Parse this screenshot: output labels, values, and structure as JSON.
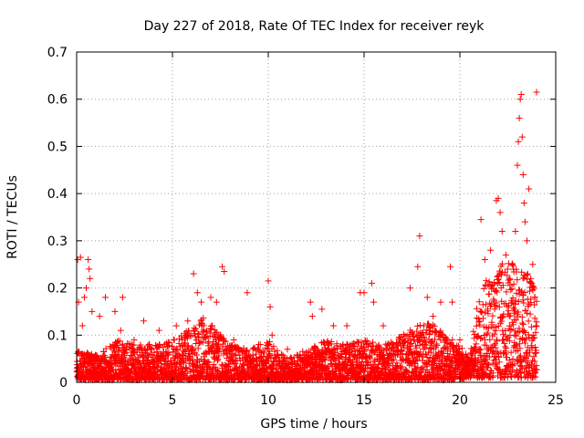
{
  "chart_data": {
    "type": "scatter",
    "title": "Day 227 of 2018, Rate Of TEC Index for receiver reyk",
    "xlabel": "GPS time / hours",
    "ylabel": "ROTI / TECUs",
    "xlim": [
      0,
      25
    ],
    "ylim": [
      0,
      0.7
    ],
    "x_ticks": [
      0,
      5,
      10,
      15,
      20,
      25
    ],
    "x_tick_labels": [
      "0",
      "5",
      "10",
      "15",
      "20",
      "25"
    ],
    "y_ticks": [
      0,
      0.1,
      0.2,
      0.3,
      0.4,
      0.5,
      0.6,
      0.7
    ],
    "y_tick_labels": [
      "0",
      "0.1",
      "0.2",
      "0.3",
      "0.4",
      "0.5",
      "0.6",
      "0.7"
    ],
    "grid": true,
    "marker": "+",
    "series": [
      {
        "name": "ROTI",
        "color": "#ff0000",
        "points": [
          [
            0.05,
            0.26
          ],
          [
            0.1,
            0.17
          ],
          [
            0.2,
            0.265
          ],
          [
            0.3,
            0.12
          ],
          [
            0.4,
            0.18
          ],
          [
            0.5,
            0.2
          ],
          [
            0.6,
            0.26
          ],
          [
            0.65,
            0.24
          ],
          [
            0.7,
            0.22
          ],
          [
            0.8,
            0.15
          ],
          [
            1.2,
            0.14
          ],
          [
            1.5,
            0.18
          ],
          [
            2.0,
            0.15
          ],
          [
            2.3,
            0.11
          ],
          [
            2.4,
            0.18
          ],
          [
            3.0,
            0.09
          ],
          [
            3.5,
            0.13
          ],
          [
            3.8,
            0.08
          ],
          [
            4.3,
            0.11
          ],
          [
            5.2,
            0.12
          ],
          [
            5.8,
            0.13
          ],
          [
            6.1,
            0.23
          ],
          [
            6.3,
            0.19
          ],
          [
            6.5,
            0.17
          ],
          [
            7.0,
            0.18
          ],
          [
            7.3,
            0.17
          ],
          [
            7.6,
            0.245
          ],
          [
            7.7,
            0.235
          ],
          [
            8.2,
            0.09
          ],
          [
            8.9,
            0.19
          ],
          [
            9.2,
            0.07
          ],
          [
            9.5,
            0.08
          ],
          [
            10.0,
            0.215
          ],
          [
            10.1,
            0.16
          ],
          [
            10.2,
            0.1
          ],
          [
            11.0,
            0.07
          ],
          [
            12.2,
            0.17
          ],
          [
            12.3,
            0.14
          ],
          [
            12.8,
            0.155
          ],
          [
            13.4,
            0.12
          ],
          [
            13.9,
            0.08
          ],
          [
            14.1,
            0.12
          ],
          [
            14.8,
            0.19
          ],
          [
            15.0,
            0.19
          ],
          [
            15.4,
            0.21
          ],
          [
            15.5,
            0.17
          ],
          [
            16.0,
            0.12
          ],
          [
            16.5,
            0.08
          ],
          [
            17.4,
            0.2
          ],
          [
            17.8,
            0.245
          ],
          [
            17.9,
            0.31
          ],
          [
            18.3,
            0.18
          ],
          [
            18.6,
            0.14
          ],
          [
            19.0,
            0.17
          ],
          [
            19.5,
            0.245
          ],
          [
            19.6,
            0.17
          ],
          [
            20.0,
            0.09
          ],
          [
            20.6,
            0.06
          ],
          [
            21.1,
            0.345
          ],
          [
            21.3,
            0.26
          ],
          [
            21.6,
            0.28
          ],
          [
            21.9,
            0.385
          ],
          [
            22.0,
            0.39
          ],
          [
            22.1,
            0.36
          ],
          [
            22.2,
            0.32
          ],
          [
            22.4,
            0.27
          ],
          [
            22.6,
            0.22
          ],
          [
            22.9,
            0.32
          ],
          [
            23.0,
            0.46
          ],
          [
            23.05,
            0.51
          ],
          [
            23.1,
            0.56
          ],
          [
            23.15,
            0.6
          ],
          [
            23.2,
            0.61
          ],
          [
            23.25,
            0.52
          ],
          [
            23.3,
            0.44
          ],
          [
            23.35,
            0.38
          ],
          [
            23.4,
            0.34
          ],
          [
            23.5,
            0.3
          ],
          [
            23.6,
            0.41
          ],
          [
            23.7,
            0.22
          ],
          [
            23.8,
            0.25
          ],
          [
            23.9,
            0.18
          ],
          [
            24.0,
            0.615
          ]
        ],
        "baseline_band": [
          [
            0.0,
            0.005,
            0.07
          ],
          [
            1.0,
            0.005,
            0.06
          ],
          [
            2.0,
            0.005,
            0.09
          ],
          [
            3.0,
            0.005,
            0.08
          ],
          [
            4.0,
            0.005,
            0.08
          ],
          [
            5.0,
            0.005,
            0.09
          ],
          [
            6.0,
            0.005,
            0.12
          ],
          [
            6.5,
            0.005,
            0.14
          ],
          [
            7.0,
            0.005,
            0.13
          ],
          [
            8.0,
            0.005,
            0.08
          ],
          [
            9.0,
            0.005,
            0.07
          ],
          [
            10.0,
            0.005,
            0.09
          ],
          [
            11.0,
            0.005,
            0.05
          ],
          [
            12.0,
            0.005,
            0.07
          ],
          [
            13.0,
            0.005,
            0.09
          ],
          [
            14.0,
            0.005,
            0.08
          ],
          [
            15.0,
            0.005,
            0.09
          ],
          [
            16.0,
            0.005,
            0.08
          ],
          [
            17.0,
            0.005,
            0.1
          ],
          [
            18.0,
            0.005,
            0.13
          ],
          [
            19.0,
            0.005,
            0.12
          ],
          [
            20.0,
            0.005,
            0.08
          ],
          [
            20.5,
            0.01,
            0.05
          ],
          [
            21.0,
            0.01,
            0.2
          ],
          [
            22.0,
            0.01,
            0.25
          ],
          [
            23.0,
            0.01,
            0.27
          ],
          [
            24.0,
            0.01,
            0.2
          ]
        ]
      }
    ]
  }
}
